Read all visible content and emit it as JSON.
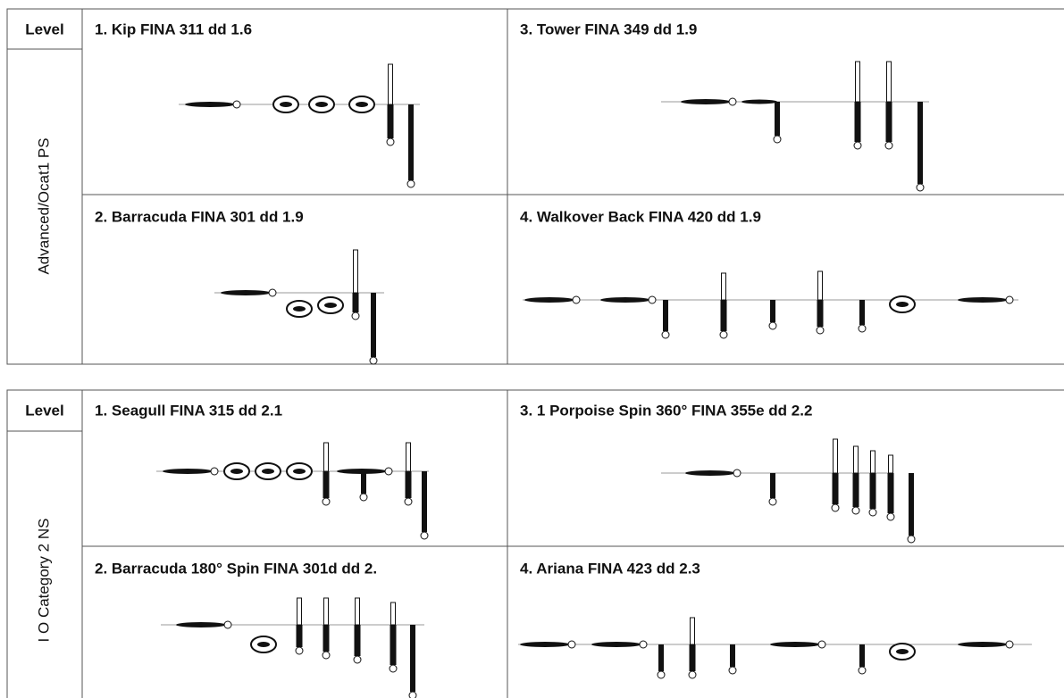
{
  "tables": [
    {
      "level_header": "Level",
      "level": "Advanced/Ocat1 PS",
      "cells": [
        "1. Kip FINA 311 dd 1.6",
        "3. Tower FINA 349 dd 1.9",
        "2. Barracuda FINA 301 dd 1.9",
        "4. Walkover Back FINA 420 dd 1.9"
      ]
    },
    {
      "level_header": "Level",
      "level": "I O Category 2 NS",
      "cells": [
        "1. Seagull FINA 315 dd 2.1",
        "3. 1 Porpoise Spin 360° FINA 355e dd 2.2",
        "2. Barracuda 180° Spin FINA 301d dd 2.",
        "4. Ariana FINA 423 dd 2.3"
      ]
    }
  ]
}
